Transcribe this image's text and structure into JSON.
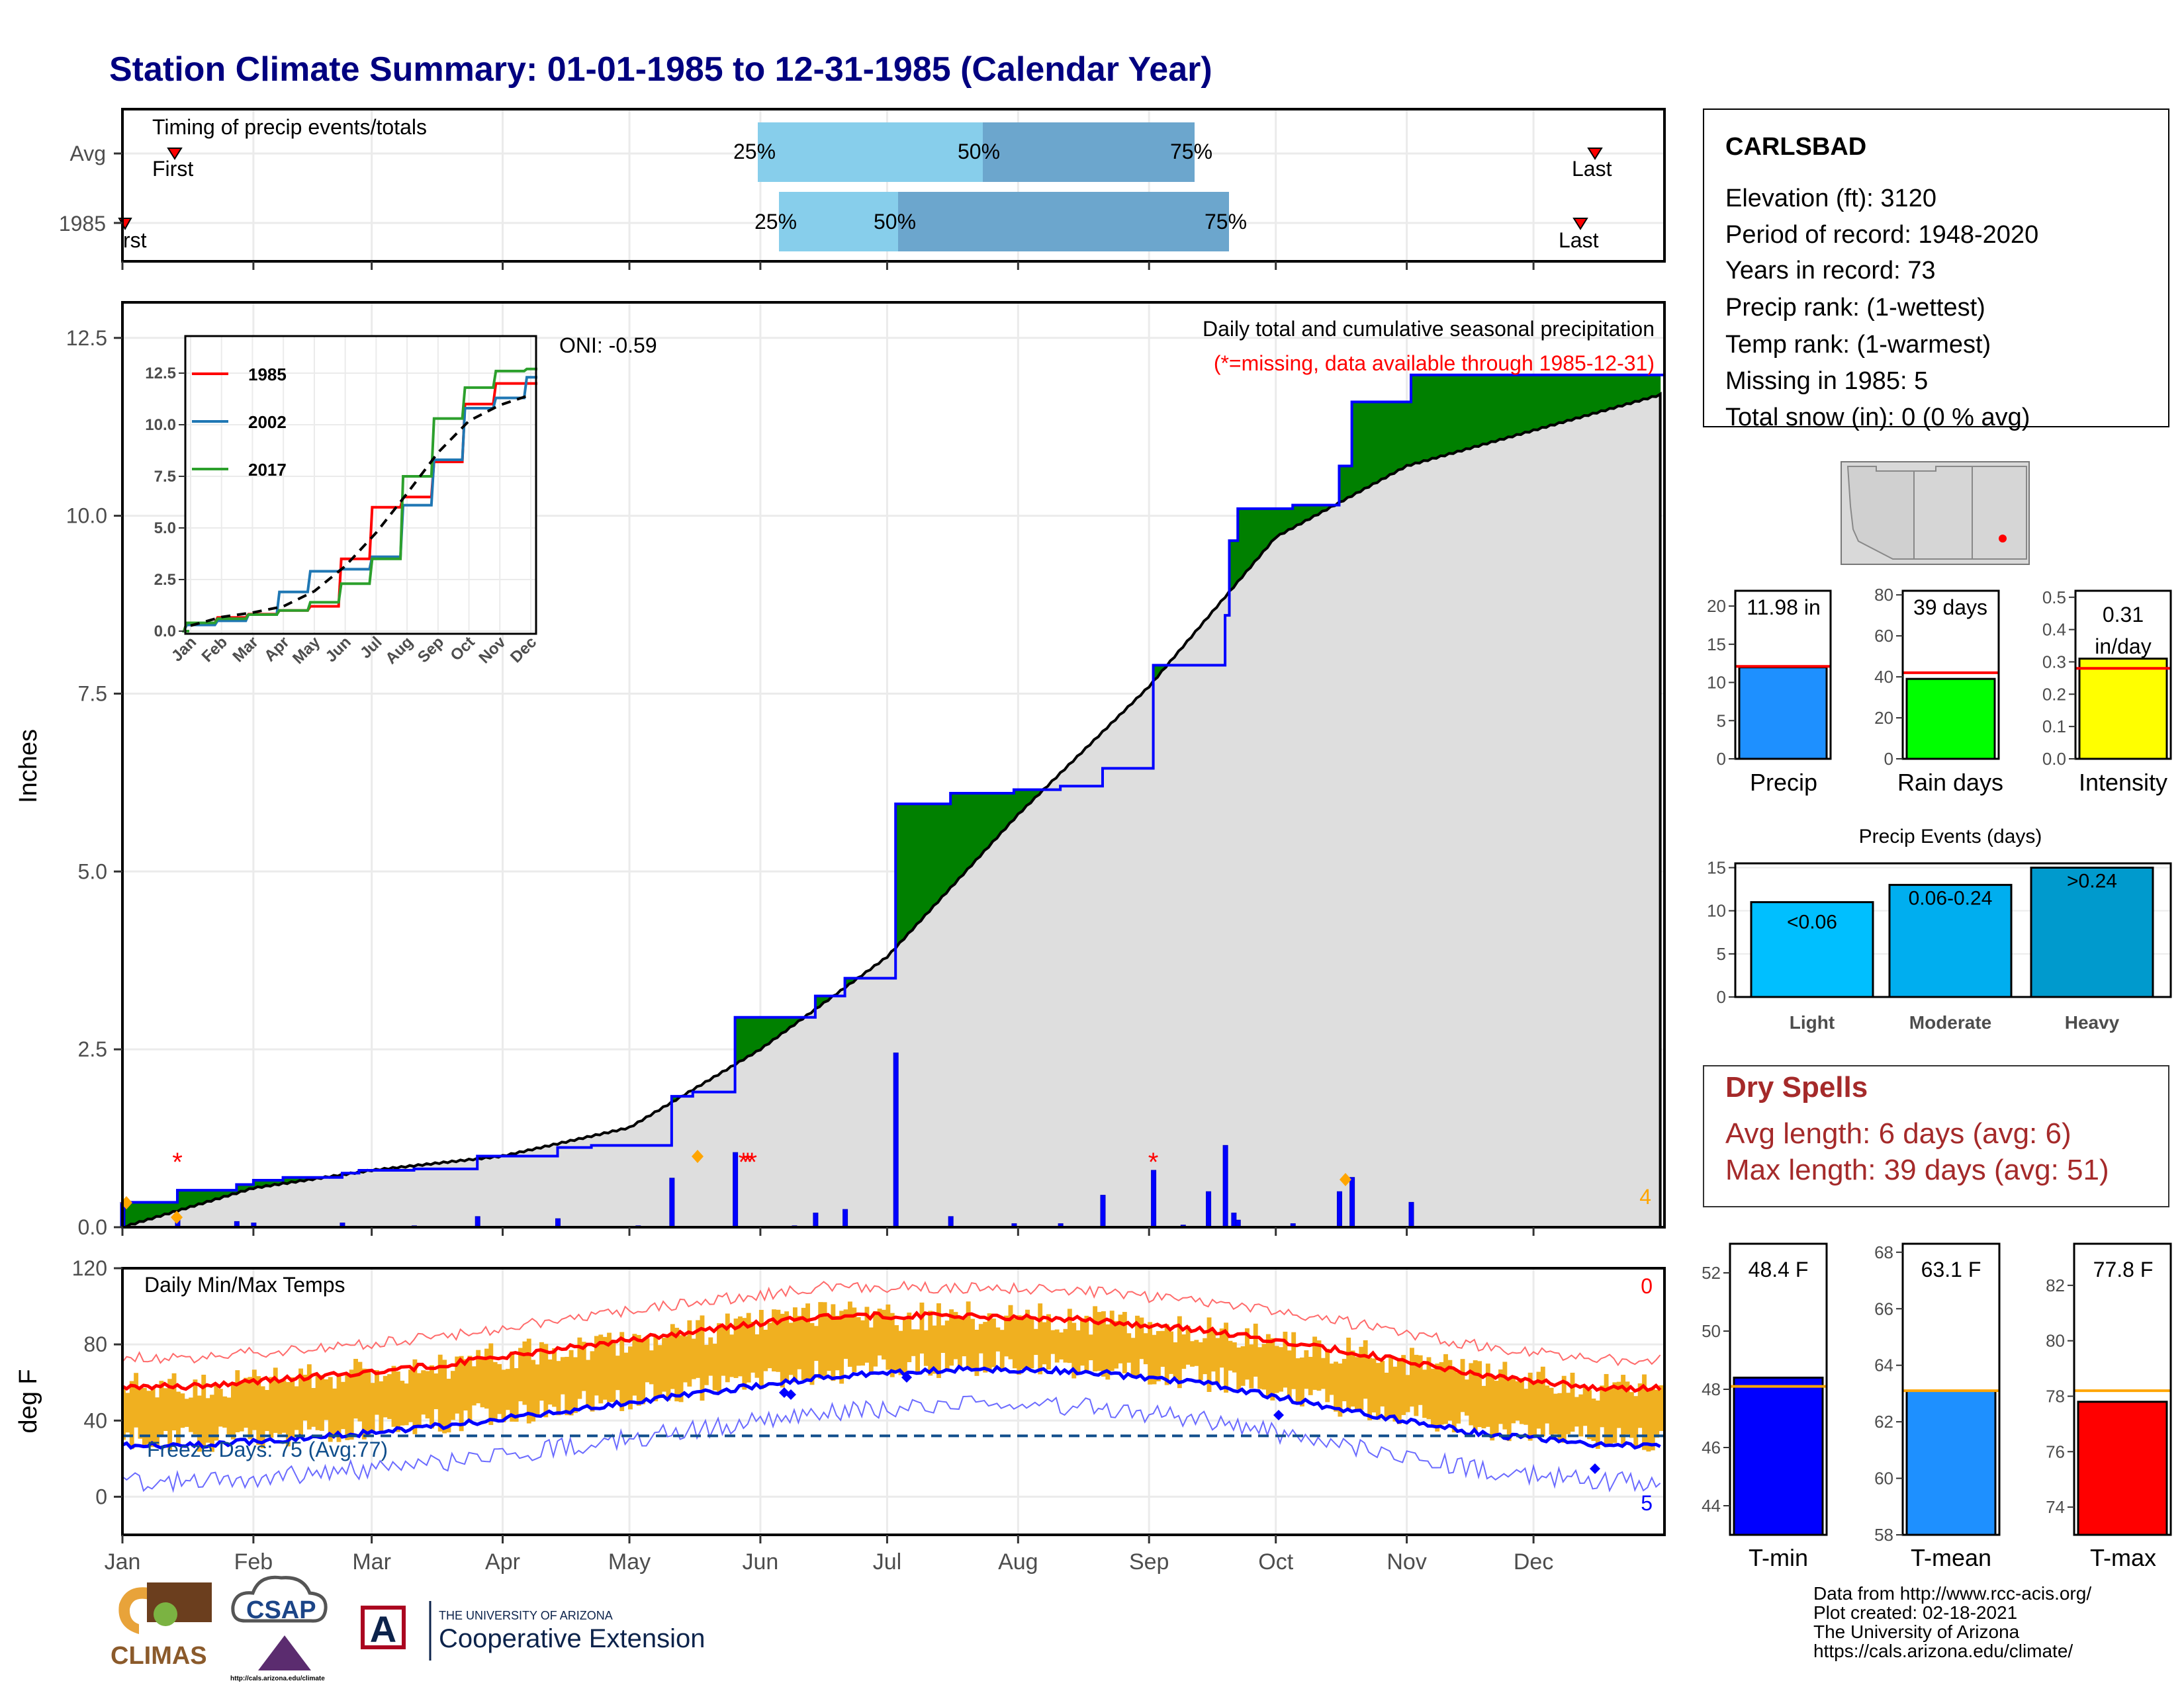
{
  "title": "Station Climate Summary: 01-01-1985 to 12-31-1985 (Calendar Year)",
  "colors": {
    "title": "#000080",
    "green": "#008000",
    "brown": "#8B5A00",
    "gray": "#DEDEDE",
    "blue": "#0000FF",
    "red": "#FF0000",
    "orange_bar": "#F0B020",
    "orange_marker": "#FFA500",
    "lightblue": "#87CEEB",
    "midblue": "#6CA6CD",
    "precip_bar": "#1E90FF",
    "raindays_bar": "#00FF00",
    "intensity_bar": "#FFFF00",
    "tmin_bar": "#0000FF",
    "tmean_bar": "#1E90FF",
    "tmax_bar": "#FF0000",
    "light_bar": "#00BFFF",
    "moderate_bar": "#00AEEF",
    "heavy_bar": "#009ACD",
    "dryspell": "#A52A2A",
    "freeze_line": "#104E8B"
  },
  "months": [
    "Jan",
    "Feb",
    "Mar",
    "Apr",
    "May",
    "Jun",
    "Jul",
    "Aug",
    "Sep",
    "Oct",
    "Nov",
    "Dec"
  ],
  "timing": {
    "label": "Timing of precip events/totals",
    "rows": [
      "Avg",
      "1985"
    ],
    "first_label": "First",
    "first_label_cut": "rst",
    "last_label": "Last",
    "pct_labels": [
      "25%",
      "50%",
      "75%"
    ]
  },
  "station": {
    "name": "CARLSBAD",
    "lines": [
      "Elevation (ft): 3120",
      "Period of record: 1948-2020",
      "Years in record: 73",
      "Precip rank:  (1-wettest)",
      "Temp rank:  (1-warmest)",
      "Missing in 1985: 5",
      "Total snow (in): 0 (0 % avg)"
    ]
  },
  "precip_panel": {
    "ylabel": "Inches",
    "title": "Daily total and cumulative seasonal precipitation",
    "subtitle": "(*=missing, data available through 1985-12-31)",
    "oni": "ONI: -0.59",
    "corner_value": "4",
    "yticks": [
      "0.0",
      "2.5",
      "5.0",
      "7.5",
      "10.0",
      "12.5"
    ]
  },
  "inset": {
    "yticks": [
      "0.0",
      "2.5",
      "5.0",
      "7.5",
      "10.0",
      "12.5"
    ],
    "legend": [
      "1985",
      "2002",
      "2017"
    ]
  },
  "temp_panel": {
    "ylabel": "deg F",
    "title": "Daily Min/Max Temps",
    "corner_top": "0",
    "corner_bottom": "5",
    "freeze": "Freeze Days: 75 (Avg:77)",
    "yticks": [
      "0",
      "40",
      "80",
      "120"
    ]
  },
  "mini_charts": {
    "precip": {
      "label": "Precip",
      "value_text": "11.98 in",
      "yticks": [
        "0",
        "5",
        "10",
        "15",
        "20"
      ]
    },
    "raindays": {
      "label": "Rain days",
      "value_text": "39 days",
      "yticks": [
        "0",
        "20",
        "40",
        "60",
        "80"
      ]
    },
    "intensity": {
      "label": "Intensity",
      "value_text": "0.31",
      "value_unit": "in/day",
      "yticks": [
        "0.0",
        "0.1",
        "0.2",
        "0.3",
        "0.4",
        "0.5"
      ]
    }
  },
  "events": {
    "title": "Precip Events (days)",
    "yticks": [
      "0",
      "5",
      "10",
      "15"
    ],
    "categories": [
      "Light",
      "Moderate",
      "Heavy"
    ],
    "labels": [
      "<0.06",
      "0.06-0.24",
      ">0.24"
    ]
  },
  "dry_spells": {
    "title": "Dry Spells",
    "avg": "Avg length: 6 days (avg: 6)",
    "max": "Max length: 39 days (avg: 51)"
  },
  "temp_bars": {
    "tmin": {
      "label": "T-min",
      "value_text": "48.4 F",
      "yticks": [
        "44",
        "46",
        "48",
        "50",
        "52"
      ]
    },
    "tmean": {
      "label": "T-mean",
      "value_text": "63.1 F",
      "yticks": [
        "58",
        "60",
        "62",
        "64",
        "66",
        "68"
      ]
    },
    "tmax": {
      "label": "T-max",
      "value_text": "77.8 F",
      "yticks": [
        "74",
        "76",
        "78",
        "80",
        "82"
      ]
    }
  },
  "footer": {
    "lines": [
      "Data from http://www.rcc-acis.org/",
      "Plot created: 02-18-2021",
      "The University of Arizona",
      "https://cals.arizona.edu/climate/"
    ],
    "ua_small": "THE UNIVERSITY OF ARIZONA",
    "ua_big": "Cooperative Extension",
    "climas": "CLIMAS",
    "csap": "CSAP",
    "csap_url": "http://cals.arizona.edu/climate"
  },
  "chart_data": [
    {
      "type": "area",
      "name": "cumulative_precip",
      "units": "inches",
      "ylim": [
        0,
        13.0
      ],
      "cumulative_1985": [
        {
          "doy": 1,
          "v": 0.35
        },
        {
          "doy": 14,
          "v": 0.52
        },
        {
          "doy": 28,
          "v": 0.6
        },
        {
          "doy": 32,
          "v": 0.66
        },
        {
          "doy": 39,
          "v": 0.7
        },
        {
          "doy": 53,
          "v": 0.76
        },
        {
          "doy": 57,
          "v": 0.8
        },
        {
          "doy": 70,
          "v": 0.82
        },
        {
          "doy": 85,
          "v": 1.0
        },
        {
          "doy": 104,
          "v": 1.12
        },
        {
          "doy": 112,
          "v": 1.15
        },
        {
          "doy": 131,
          "v": 1.84
        },
        {
          "doy": 136,
          "v": 1.9
        },
        {
          "doy": 146,
          "v": 2.95
        },
        {
          "doy": 165,
          "v": 3.25
        },
        {
          "doy": 172,
          "v": 3.5
        },
        {
          "doy": 184,
          "v": 5.95
        },
        {
          "doy": 197,
          "v": 6.1
        },
        {
          "doy": 212,
          "v": 6.15
        },
        {
          "doy": 223,
          "v": 6.2
        },
        {
          "doy": 233,
          "v": 6.45
        },
        {
          "doy": 245,
          "v": 7.9
        },
        {
          "doy": 262,
          "v": 8.6
        },
        {
          "doy": 263,
          "v": 9.65
        },
        {
          "doy": 265,
          "v": 10.1
        },
        {
          "doy": 278,
          "v": 10.15
        },
        {
          "doy": 289,
          "v": 10.7
        },
        {
          "doy": 292,
          "v": 11.6
        },
        {
          "doy": 306,
          "v": 11.98
        },
        {
          "doy": 365,
          "v": 11.98
        }
      ],
      "avg_cumulative": [
        {
          "doy": 1,
          "v": 0
        },
        {
          "doy": 32,
          "v": 0.55
        },
        {
          "doy": 60,
          "v": 0.8
        },
        {
          "doy": 91,
          "v": 1.0
        },
        {
          "doy": 121,
          "v": 1.4
        },
        {
          "doy": 152,
          "v": 2.5
        },
        {
          "doy": 182,
          "v": 3.8
        },
        {
          "doy": 213,
          "v": 5.8
        },
        {
          "doy": 244,
          "v": 7.6
        },
        {
          "doy": 274,
          "v": 9.7
        },
        {
          "doy": 305,
          "v": 10.7
        },
        {
          "doy": 335,
          "v": 11.2
        },
        {
          "doy": 365,
          "v": 11.7
        }
      ],
      "daily_precip": [
        {
          "doy": 1,
          "v": 0.35
        },
        {
          "doy": 14,
          "v": 0.17
        },
        {
          "doy": 28,
          "v": 0.08
        },
        {
          "doy": 32,
          "v": 0.06
        },
        {
          "doy": 53,
          "v": 0.06
        },
        {
          "doy": 70,
          "v": 0.02
        },
        {
          "doy": 85,
          "v": 0.15
        },
        {
          "doy": 104,
          "v": 0.12
        },
        {
          "doy": 123,
          "v": 0.02
        },
        {
          "doy": 131,
          "v": 0.69
        },
        {
          "doy": 146,
          "v": 1.05
        },
        {
          "doy": 160,
          "v": 0.02
        },
        {
          "doy": 165,
          "v": 0.2
        },
        {
          "doy": 172,
          "v": 0.25
        },
        {
          "doy": 184,
          "v": 2.45
        },
        {
          "doy": 197,
          "v": 0.15
        },
        {
          "doy": 212,
          "v": 0.05
        },
        {
          "doy": 223,
          "v": 0.05
        },
        {
          "doy": 233,
          "v": 0.45
        },
        {
          "doy": 245,
          "v": 0.8
        },
        {
          "doy": 252,
          "v": 0.03
        },
        {
          "doy": 258,
          "v": 0.5
        },
        {
          "doy": 262,
          "v": 1.15
        },
        {
          "doy": 264,
          "v": 0.2
        },
        {
          "doy": 265,
          "v": 0.1
        },
        {
          "doy": 278,
          "v": 0.05
        },
        {
          "doy": 289,
          "v": 0.5
        },
        {
          "doy": 292,
          "v": 0.7
        },
        {
          "doy": 306,
          "v": 0.35
        }
      ],
      "missing_days": [
        14,
        148,
        149,
        150,
        245
      ]
    },
    {
      "type": "line",
      "name": "inset_cumulative",
      "units": "inches",
      "x": "month",
      "ylim": [
        0,
        12.5
      ],
      "series": [
        {
          "name": "1985",
          "values": [
            0.4,
            0.66,
            0.82,
            1.0,
            1.2,
            3.5,
            6.0,
            6.5,
            8.2,
            11.0,
            12.0,
            12.0
          ]
        },
        {
          "name": "2002",
          "values": [
            0.3,
            0.5,
            0.8,
            1.9,
            2.9,
            3.0,
            3.6,
            6.1,
            8.3,
            10.8,
            11.3,
            12.3
          ]
        },
        {
          "name": "2017",
          "values": [
            0.4,
            0.6,
            0.8,
            1.0,
            1.4,
            2.3,
            3.5,
            7.5,
            10.3,
            11.8,
            12.6,
            12.7
          ]
        }
      ]
    },
    {
      "type": "line",
      "name": "daily_min_max_temps",
      "units": "deg F",
      "ylim": [
        -20,
        120
      ],
      "avg_max_by_month": [
        58,
        63,
        69,
        78,
        87,
        95,
        95,
        93,
        87,
        77,
        65,
        57
      ],
      "avg_min_by_month": [
        27,
        31,
        37,
        45,
        54,
        63,
        67,
        66,
        59,
        46,
        34,
        27
      ],
      "freeze_line": 32
    },
    {
      "type": "bar",
      "name": "precip_total",
      "categories": [
        "Precip"
      ],
      "values": [
        11.98
      ],
      "avg": 12.1,
      "ylim": [
        0,
        22
      ]
    },
    {
      "type": "bar",
      "name": "rain_days",
      "categories": [
        "Rain days"
      ],
      "values": [
        39
      ],
      "avg": 42,
      "ylim": [
        0,
        82
      ]
    },
    {
      "type": "bar",
      "name": "intensity",
      "categories": [
        "Intensity"
      ],
      "values": [
        0.31
      ],
      "avg": 0.28,
      "ylim": [
        0,
        0.52
      ]
    },
    {
      "type": "bar",
      "name": "precip_events",
      "categories": [
        "Light",
        "Moderate",
        "Heavy"
      ],
      "values": [
        11,
        13,
        15
      ],
      "ylim": [
        0,
        15.5
      ]
    },
    {
      "type": "bar",
      "name": "tmin",
      "categories": [
        "T-min"
      ],
      "values": [
        48.4
      ],
      "avg": 48.1,
      "ylim": [
        43,
        53
      ]
    },
    {
      "type": "bar",
      "name": "tmean",
      "categories": [
        "T-mean"
      ],
      "values": [
        63.1
      ],
      "avg": 63.1,
      "ylim": [
        58,
        68.3
      ]
    },
    {
      "type": "bar",
      "name": "tmax",
      "categories": [
        "T-max"
      ],
      "values": [
        77.8
      ],
      "avg": 78.2,
      "ylim": [
        73,
        83.5
      ]
    }
  ]
}
